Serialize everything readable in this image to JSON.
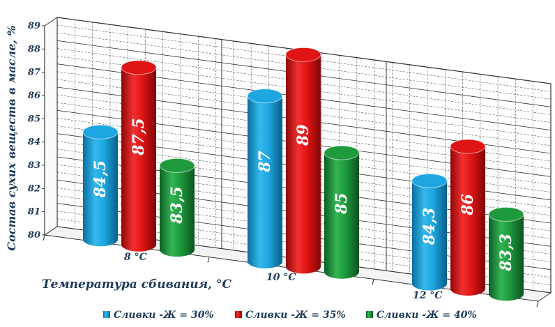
{
  "chart_data": {
    "type": "bar",
    "categories": [
      "8 °C",
      "10 °C",
      "12 °C"
    ],
    "series": [
      {
        "name": "Сливки -Ж = 30%",
        "values": [
          84.5,
          87,
          84.3
        ],
        "labels": [
          "84,5",
          "87",
          "84,3"
        ],
        "color": "#1ea6e0"
      },
      {
        "name": "Сливки -Ж = 35%",
        "values": [
          87.5,
          89,
          86
        ],
        "labels": [
          "87,5",
          "89",
          "86"
        ],
        "color": "#e01414"
      },
      {
        "name": "Сливки -Ж = 40%",
        "values": [
          83.5,
          85,
          83.3
        ],
        "labels": [
          "83,5",
          "85",
          "83,3"
        ],
        "color": "#1e9a3c"
      }
    ],
    "xlabel": "Температура сбивания, °C",
    "ylabel": "Состав сухих веществ в масле, %",
    "ylim": [
      80,
      89
    ],
    "yticks": [
      "80",
      "81",
      "82",
      "83",
      "84",
      "85",
      "86",
      "87",
      "88",
      "89"
    ],
    "grid": true,
    "legend": "bottom"
  }
}
